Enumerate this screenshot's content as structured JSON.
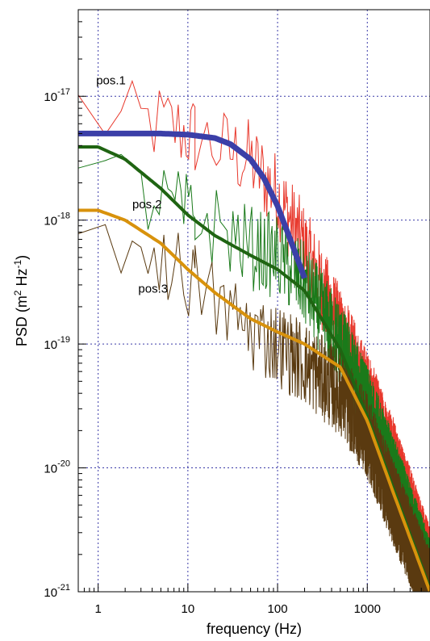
{
  "chart_data": {
    "type": "line",
    "xlabel": "frequency (Hz)",
    "ylabel_base": "PSD (m",
    "ylabel_sup1": "2",
    "ylabel_mid": " Hz",
    "ylabel_sup2": "-1",
    "ylabel_end": ")",
    "x_scale": "log",
    "y_scale": "log",
    "xlim": [
      0.6,
      5000
    ],
    "ylim": [
      1e-21,
      5e-17
    ],
    "x_ticks": [
      {
        "value": 1,
        "label": "1"
      },
      {
        "value": 10,
        "label": "10"
      },
      {
        "value": 100,
        "label": "100"
      },
      {
        "value": 1000,
        "label": "1000"
      }
    ],
    "y_ticks": [
      {
        "value": 1e-17,
        "base": "10",
        "exp": "-17"
      },
      {
        "value": 1e-18,
        "base": "10",
        "exp": "-18"
      },
      {
        "value": 1e-19,
        "base": "10",
        "exp": "-19"
      },
      {
        "value": 1e-20,
        "base": "10",
        "exp": "-20"
      },
      {
        "value": 1e-21,
        "base": "10",
        "exp": "-21"
      }
    ],
    "grid": true,
    "series_labels": [
      {
        "text": "pos.1",
        "series": "pos1"
      },
      {
        "text": "pos.2",
        "series": "pos2"
      },
      {
        "text": "pos.3",
        "series": "pos3"
      }
    ],
    "series": [
      {
        "id": "pos1",
        "kind": "measured",
        "color": "#e8382c",
        "x": [
          0.6,
          1,
          2,
          5,
          10,
          20,
          50,
          100,
          200,
          500,
          1000,
          2000,
          5000
        ],
        "y": [
          8e-18,
          7e-18,
          6e-18,
          6e-18,
          5e-18,
          4e-18,
          3e-18,
          1.6e-18,
          6e-19,
          1.3e-19,
          4e-20,
          1.1e-20,
          1.5e-21
        ]
      },
      {
        "id": "pos1",
        "kind": "fit",
        "color": "#3b3fa8",
        "x": [
          0.6,
          1,
          2,
          5,
          10,
          20,
          30,
          50,
          70,
          100,
          150,
          200
        ],
        "y": [
          5e-18,
          5e-18,
          5e-18,
          5e-18,
          4.9e-18,
          4.6e-18,
          4.1e-18,
          3.1e-18,
          2.2e-18,
          1.3e-18,
          6e-19,
          3.4e-19
        ]
      },
      {
        "id": "pos2",
        "kind": "measured",
        "color": "#1a7a1a",
        "x": [
          0.6,
          1,
          2,
          5,
          10,
          20,
          50,
          100,
          200,
          500,
          1000,
          2000,
          5000
        ],
        "y": [
          2.2e-18,
          2.2e-18,
          1.8e-18,
          1.4e-18,
          1.1e-18,
          9e-19,
          6e-19,
          5e-19,
          3e-19,
          1e-19,
          3e-20,
          8e-21,
          1.2e-21
        ]
      },
      {
        "id": "pos2",
        "kind": "fit",
        "color": "#1f6412",
        "x": [
          0.6,
          1,
          2,
          5,
          10,
          20,
          50,
          100,
          200,
          500,
          1000,
          2000,
          5000
        ],
        "y": [
          3.9e-18,
          3.9e-18,
          3.1e-18,
          1.8e-18,
          1.1e-18,
          7.5e-19,
          5.2e-19,
          4e-19,
          2.7e-19,
          9e-20,
          2.6e-20,
          6.5e-21,
          1.05e-21
        ]
      },
      {
        "id": "pos3",
        "kind": "measured",
        "color": "#5a3a10",
        "x": [
          0.6,
          1,
          2,
          5,
          10,
          20,
          50,
          100,
          200,
          500,
          1000,
          2000,
          5000
        ],
        "y": [
          8.5e-19,
          8.5e-19,
          7e-19,
          5e-19,
          3.5e-19,
          2.2e-19,
          1.3e-19,
          1e-19,
          7e-20,
          4e-20,
          1.8e-20,
          5e-21,
          1e-21
        ]
      },
      {
        "id": "pos3",
        "kind": "fit",
        "color": "#d8920c",
        "x": [
          0.6,
          1,
          2,
          5,
          10,
          20,
          50,
          100,
          200,
          500,
          1000,
          2000,
          5000
        ],
        "y": [
          1.2e-18,
          1.2e-18,
          1e-18,
          6.5e-19,
          4e-19,
          2.6e-19,
          1.6e-19,
          1.25e-19,
          1e-19,
          6.5e-20,
          2.4e-20,
          6e-21,
          1e-21
        ]
      }
    ]
  }
}
